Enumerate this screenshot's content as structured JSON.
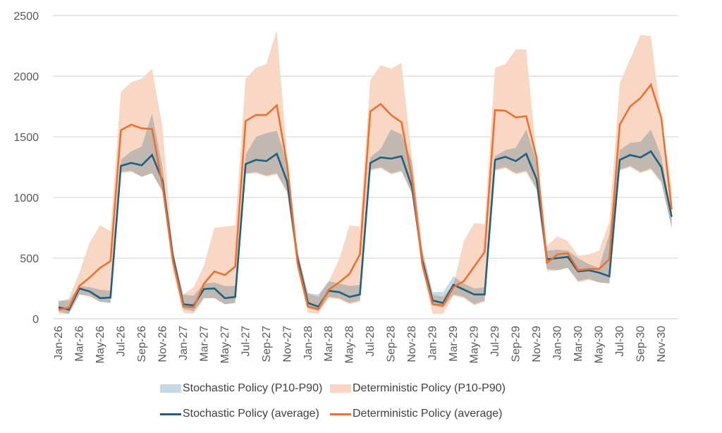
{
  "chart_data": {
    "type": "area",
    "title": "",
    "xlabel": "",
    "ylabel": "",
    "ylim": [
      0,
      2500
    ],
    "yticks": [
      0,
      500,
      1000,
      1500,
      2000,
      2500
    ],
    "grid": true,
    "legend_position": "bottom",
    "x": [
      "Jan-26",
      "Feb-26",
      "Mar-26",
      "Apr-26",
      "May-26",
      "Jun-26",
      "Jul-26",
      "Aug-26",
      "Sep-26",
      "Oct-26",
      "Nov-26",
      "Dec-26",
      "Jan-27",
      "Feb-27",
      "Mar-27",
      "Apr-27",
      "May-27",
      "Jun-27",
      "Jul-27",
      "Aug-27",
      "Sep-27",
      "Oct-27",
      "Nov-27",
      "Dec-27",
      "Jan-28",
      "Feb-28",
      "Mar-28",
      "Apr-28",
      "May-28",
      "Jun-28",
      "Jul-28",
      "Aug-28",
      "Sep-28",
      "Oct-28",
      "Nov-28",
      "Dec-28",
      "Jan-29",
      "Feb-29",
      "Mar-29",
      "Apr-29",
      "May-29",
      "Jun-29",
      "Jul-29",
      "Aug-29",
      "Sep-29",
      "Oct-29",
      "Nov-29",
      "Dec-29",
      "Jan-30",
      "Feb-30",
      "Mar-30",
      "Apr-30",
      "May-30",
      "Jun-30",
      "Jul-30",
      "Aug-30",
      "Sep-30",
      "Oct-30",
      "Nov-30",
      "Dec-30"
    ],
    "xtick_labels": [
      "Jan-26",
      "Mar-26",
      "May-26",
      "Jul-26",
      "Sep-26",
      "Nov-26",
      "Jan-27",
      "Mar-27",
      "May-27",
      "Jul-27",
      "Sep-27",
      "Nov-27",
      "Jan-28",
      "Mar-28",
      "May-28",
      "Jul-28",
      "Sep-28",
      "Nov-28",
      "Jan-29",
      "Mar-29",
      "May-29",
      "Jul-29",
      "Sep-29",
      "Nov-29",
      "Jan-30",
      "Mar-30",
      "May-30",
      "Jul-30",
      "Sep-30",
      "Nov-30"
    ],
    "series": [
      {
        "name": "Stochastic Policy (P10-P90)",
        "kind": "band",
        "color": "#b4cddc",
        "low": [
          60,
          40,
          200,
          190,
          140,
          130,
          1210,
          1220,
          1170,
          1200,
          1050,
          450,
          80,
          60,
          170,
          170,
          120,
          130,
          1200,
          1210,
          1180,
          1200,
          1050,
          420,
          90,
          60,
          180,
          170,
          130,
          150,
          1230,
          1250,
          1200,
          1220,
          1040,
          420,
          110,
          90,
          200,
          180,
          120,
          150,
          1230,
          1250,
          1200,
          1220,
          1070,
          410,
          400,
          420,
          310,
          330,
          300,
          290,
          1230,
          1260,
          1210,
          1240,
          1130,
          750
        ],
        "high": [
          150,
          150,
          270,
          260,
          240,
          230,
          1310,
          1380,
          1420,
          1690,
          1250,
          550,
          200,
          190,
          290,
          300,
          270,
          270,
          1350,
          1500,
          1530,
          1550,
          1290,
          550,
          210,
          200,
          310,
          290,
          270,
          280,
          1330,
          1400,
          1560,
          1520,
          1300,
          560,
          220,
          220,
          350,
          290,
          250,
          260,
          1340,
          1390,
          1410,
          1560,
          1300,
          560,
          570,
          560,
          500,
          450,
          420,
          700,
          1390,
          1450,
          1460,
          1560,
          1340,
          850
        ]
      },
      {
        "name": "Deterministic Policy (P10-P90)",
        "kind": "band",
        "color": "#f8d5c2",
        "low": [
          40,
          40,
          200,
          180,
          140,
          130,
          1200,
          1210,
          1170,
          1200,
          1050,
          400,
          50,
          40,
          170,
          170,
          120,
          130,
          1190,
          1200,
          1170,
          1190,
          1030,
          400,
          50,
          40,
          170,
          160,
          120,
          140,
          1220,
          1240,
          1190,
          1210,
          1030,
          400,
          40,
          40,
          190,
          170,
          110,
          140,
          1220,
          1240,
          1190,
          1210,
          1060,
          390,
          400,
          420,
          300,
          320,
          300,
          290,
          1220,
          1250,
          1200,
          1230,
          1120,
          740
        ],
        "high": [
          140,
          170,
          380,
          630,
          770,
          720,
          1870,
          1950,
          1980,
          2060,
          1580,
          560,
          200,
          260,
          440,
          750,
          760,
          770,
          1980,
          2070,
          2100,
          2380,
          1340,
          550,
          210,
          180,
          310,
          490,
          770,
          760,
          1970,
          2090,
          2060,
          2110,
          1330,
          580,
          200,
          180,
          280,
          640,
          790,
          780,
          2070,
          2100,
          2220,
          2220,
          1330,
          600,
          680,
          640,
          520,
          530,
          560,
          800,
          1940,
          2140,
          2340,
          2330,
          1650,
          1070
        ]
      },
      {
        "name": "Stochastic Policy (average)",
        "kind": "line",
        "color": "#1f5f7f",
        "values": [
          95,
          75,
          250,
          225,
          170,
          175,
          1260,
          1285,
          1265,
          1350,
          1140,
          520,
          120,
          110,
          245,
          250,
          170,
          180,
          1275,
          1310,
          1300,
          1360,
          1130,
          500,
          130,
          100,
          230,
          220,
          180,
          200,
          1285,
          1330,
          1320,
          1340,
          1090,
          480,
          150,
          130,
          280,
          240,
          200,
          200,
          1310,
          1335,
          1300,
          1360,
          1150,
          490,
          500,
          510,
          390,
          400,
          380,
          350,
          1310,
          1350,
          1330,
          1380,
          1250,
          840
        ]
      },
      {
        "name": "Deterministic Policy (average)",
        "kind": "line",
        "color": "#ec7130",
        "values": [
          75,
          90,
          270,
          340,
          420,
          475,
          1555,
          1600,
          1570,
          1565,
          1100,
          480,
          100,
          95,
          290,
          390,
          360,
          430,
          1630,
          1680,
          1680,
          1760,
          1270,
          460,
          100,
          80,
          240,
          300,
          370,
          530,
          1710,
          1770,
          1680,
          1620,
          1160,
          450,
          120,
          110,
          260,
          310,
          430,
          550,
          1720,
          1715,
          1660,
          1670,
          1330,
          460,
          530,
          540,
          400,
          410,
          410,
          490,
          1600,
          1750,
          1820,
          1930,
          1660,
          900
        ]
      }
    ]
  },
  "legend": {
    "items": [
      {
        "label": "Stochastic Policy (P10-P90)",
        "color": "#c6d8e3"
      },
      {
        "label": "Deterministic Policy (P10-P90)",
        "color": "#f8d5c2"
      },
      {
        "label": "Stochastic Policy (average)",
        "color": "#1f5f7f"
      },
      {
        "label": "Deterministic Policy (average)",
        "color": "#ec7130"
      }
    ]
  }
}
